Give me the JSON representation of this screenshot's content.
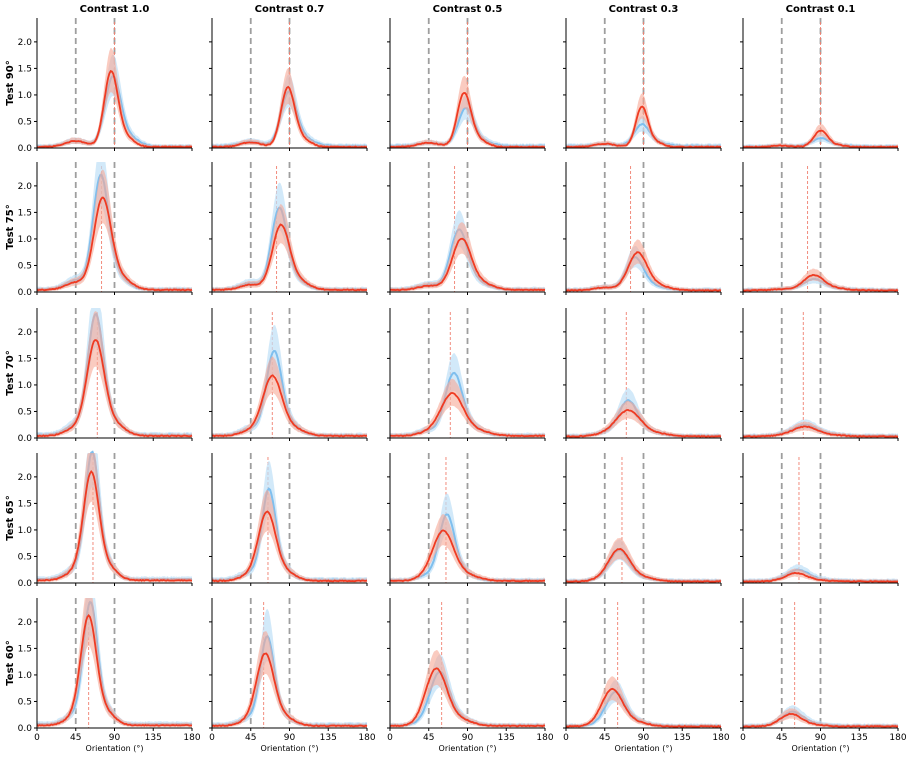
{
  "chart_data": {
    "type": "line",
    "layout": "5x5 grid of small-multiple density plots",
    "column_titles": [
      "Contrast 1.0",
      "Contrast 0.7",
      "Contrast 0.5",
      "Contrast 0.3",
      "Contrast 0.1"
    ],
    "row_labels": [
      "Test 90°",
      "Test 75°",
      "Test 70°",
      "Test 65°",
      "Test 60°"
    ],
    "test_orientations": [
      90,
      75,
      70,
      65,
      60
    ],
    "xlabel": "Orientation (°)",
    "xlim": [
      0,
      180
    ],
    "xticks": [
      0,
      45,
      90,
      135,
      180
    ],
    "ylim": [
      0,
      2.45
    ],
    "yticks": [
      0.0,
      0.5,
      1.0,
      1.5,
      2.0
    ],
    "ytick_labels": [
      "0.0",
      "0.5",
      "1.0",
      "1.5",
      "2.0"
    ],
    "reference_lines": [
      45,
      90
    ],
    "series_names": [
      "blue",
      "red"
    ],
    "colors": {
      "blue_line": "#7fbfee",
      "blue_band": "#bfe0f7",
      "red_line": "#ef3b22",
      "red_band": "#f7a896",
      "reference": "#9e9e9e",
      "test_marker": "#f08070"
    },
    "panels": [
      [
        {
          "blue": {
            "peak": 1.3,
            "center": 88,
            "width": 9,
            "base": 0.03
          },
          "red": {
            "peak": 1.4,
            "center": 86,
            "width": 8,
            "base": 0.02
          }
        },
        {
          "blue": {
            "peak": 1.0,
            "center": 89,
            "width": 9,
            "base": 0.04
          },
          "red": {
            "peak": 1.1,
            "center": 88,
            "width": 8,
            "base": 0.02
          }
        },
        {
          "blue": {
            "peak": 0.7,
            "center": 88,
            "width": 9,
            "base": 0.04
          },
          "red": {
            "peak": 1.0,
            "center": 86,
            "width": 8,
            "base": 0.02
          }
        },
        {
          "blue": {
            "peak": 0.4,
            "center": 88,
            "width": 9,
            "base": 0.04
          },
          "red": {
            "peak": 0.75,
            "center": 88,
            "width": 7,
            "base": 0.02
          }
        },
        {
          "blue": {
            "peak": 0.15,
            "center": 90,
            "width": 10,
            "base": 0.03
          },
          "red": {
            "peak": 0.3,
            "center": 90,
            "width": 8,
            "base": 0.02
          }
        }
      ],
      [
        {
          "blue": {
            "peak": 2.1,
            "center": 74,
            "width": 9,
            "base": 0.05
          },
          "red": {
            "peak": 1.7,
            "center": 76,
            "width": 10,
            "base": 0.04
          }
        },
        {
          "blue": {
            "peak": 1.5,
            "center": 78,
            "width": 9,
            "base": 0.05
          },
          "red": {
            "peak": 1.2,
            "center": 80,
            "width": 10,
            "base": 0.04
          }
        },
        {
          "blue": {
            "peak": 1.1,
            "center": 80,
            "width": 10,
            "base": 0.05
          },
          "red": {
            "peak": 0.95,
            "center": 83,
            "width": 11,
            "base": 0.04
          }
        },
        {
          "blue": {
            "peak": 0.6,
            "center": 80,
            "width": 10,
            "base": 0.04
          },
          "red": {
            "peak": 0.7,
            "center": 83,
            "width": 11,
            "base": 0.03
          }
        },
        {
          "blue": {
            "peak": 0.2,
            "center": 82,
            "width": 12,
            "base": 0.04
          },
          "red": {
            "peak": 0.28,
            "center": 82,
            "width": 12,
            "base": 0.03
          }
        }
      ],
      [
        {
          "blue": {
            "peak": 2.2,
            "center": 68,
            "width": 9,
            "base": 0.06
          },
          "red": {
            "peak": 1.75,
            "center": 68,
            "width": 10,
            "base": 0.04
          }
        },
        {
          "blue": {
            "peak": 1.55,
            "center": 72,
            "width": 9,
            "base": 0.05
          },
          "red": {
            "peak": 1.1,
            "center": 70,
            "width": 11,
            "base": 0.04
          }
        },
        {
          "blue": {
            "peak": 1.15,
            "center": 74,
            "width": 10,
            "base": 0.05
          },
          "red": {
            "peak": 0.78,
            "center": 72,
            "width": 13,
            "base": 0.04
          }
        },
        {
          "blue": {
            "peak": 0.65,
            "center": 72,
            "width": 11,
            "base": 0.04
          },
          "red": {
            "peak": 0.48,
            "center": 72,
            "width": 14,
            "base": 0.03
          }
        },
        {
          "blue": {
            "peak": 0.2,
            "center": 72,
            "width": 14,
            "base": 0.04
          },
          "red": {
            "peak": 0.18,
            "center": 72,
            "width": 14,
            "base": 0.03
          }
        }
      ],
      [
        {
          "blue": {
            "peak": 2.3,
            "center": 64,
            "width": 8,
            "base": 0.07
          },
          "red": {
            "peak": 1.95,
            "center": 63,
            "width": 9,
            "base": 0.05
          }
        },
        {
          "blue": {
            "peak": 1.65,
            "center": 66,
            "width": 8,
            "base": 0.06
          },
          "red": {
            "peak": 1.25,
            "center": 64,
            "width": 10,
            "base": 0.04
          }
        },
        {
          "blue": {
            "peak": 1.2,
            "center": 66,
            "width": 9,
            "base": 0.05
          },
          "red": {
            "peak": 0.9,
            "center": 62,
            "width": 12,
            "base": 0.04
          }
        },
        {
          "blue": {
            "peak": 0.55,
            "center": 62,
            "width": 11,
            "base": 0.04
          },
          "red": {
            "peak": 0.58,
            "center": 62,
            "width": 12,
            "base": 0.03
          }
        },
        {
          "blue": {
            "peak": 0.2,
            "center": 64,
            "width": 12,
            "base": 0.04
          },
          "red": {
            "peak": 0.15,
            "center": 62,
            "width": 12,
            "base": 0.03
          }
        }
      ],
      [
        {
          "blue": {
            "peak": 2.2,
            "center": 62,
            "width": 8,
            "base": 0.07
          },
          "red": {
            "peak": 1.95,
            "center": 60,
            "width": 9,
            "base": 0.05
          }
        },
        {
          "blue": {
            "peak": 1.6,
            "center": 64,
            "width": 8,
            "base": 0.06
          },
          "red": {
            "peak": 1.3,
            "center": 62,
            "width": 10,
            "base": 0.04
          }
        },
        {
          "blue": {
            "peak": 0.95,
            "center": 58,
            "width": 11,
            "base": 0.05
          },
          "red": {
            "peak": 1.0,
            "center": 54,
            "width": 12,
            "base": 0.04
          }
        },
        {
          "blue": {
            "peak": 0.6,
            "center": 58,
            "width": 11,
            "base": 0.04
          },
          "red": {
            "peak": 0.65,
            "center": 54,
            "width": 12,
            "base": 0.03
          }
        },
        {
          "blue": {
            "peak": 0.25,
            "center": 58,
            "width": 12,
            "base": 0.04
          },
          "red": {
            "peak": 0.22,
            "center": 56,
            "width": 12,
            "base": 0.03
          }
        }
      ]
    ]
  }
}
